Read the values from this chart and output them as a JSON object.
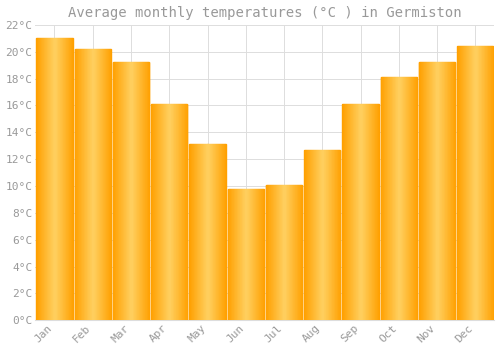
{
  "title": "Average monthly temperatures (°C ) in Germiston",
  "months": [
    "Jan",
    "Feb",
    "Mar",
    "Apr",
    "May",
    "Jun",
    "Jul",
    "Aug",
    "Sep",
    "Oct",
    "Nov",
    "Dec"
  ],
  "values": [
    21.0,
    20.2,
    19.2,
    16.1,
    13.1,
    9.8,
    10.1,
    12.7,
    16.1,
    18.1,
    19.2,
    20.4
  ],
  "bar_color_light": "#FFD060",
  "bar_color_dark": "#FFA000",
  "background_color": "#FFFFFF",
  "grid_color": "#DDDDDD",
  "text_color": "#999999",
  "ylim": [
    0,
    22
  ],
  "yticks": [
    0,
    2,
    4,
    6,
    8,
    10,
    12,
    14,
    16,
    18,
    20,
    22
  ],
  "ytick_labels": [
    "0°C",
    "2°C",
    "4°C",
    "6°C",
    "8°C",
    "10°C",
    "12°C",
    "14°C",
    "16°C",
    "18°C",
    "20°C",
    "22°C"
  ],
  "title_fontsize": 10,
  "tick_fontsize": 8,
  "font_family": "monospace",
  "bar_width": 0.95
}
